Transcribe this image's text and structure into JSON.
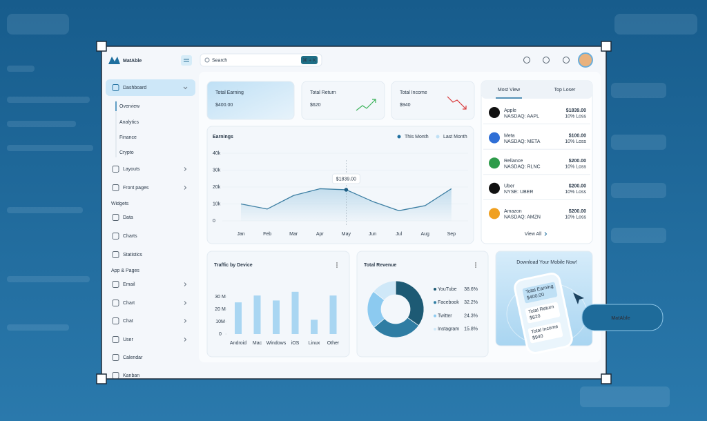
{
  "brand": "MatAble",
  "search": {
    "placeholder": "Search",
    "shortcut": "⌘ + K"
  },
  "sidebar": {
    "items": [
      "Dashboard",
      "Overview",
      "Analytics",
      "Finance",
      "Crypto",
      "Layouts",
      "Front pages",
      "Widgets",
      "Data",
      "Charts",
      "Statistics",
      "App & Pages",
      "Email",
      "Chart",
      "Chat",
      "User",
      "Calendar",
      "Kanban"
    ]
  },
  "stats": [
    {
      "label": "Total Earning",
      "value": "$400.00"
    },
    {
      "label": "Total Return",
      "value": "$620"
    },
    {
      "label": "Total Income",
      "value": "$940"
    }
  ],
  "earnings": {
    "type": "line",
    "title": "Earnings",
    "legend": [
      "This Month",
      "Last Month"
    ],
    "categories": [
      "Jan",
      "Feb",
      "Mar",
      "Apr",
      "May",
      "Jun",
      "Jul",
      "Aug",
      "Sep"
    ],
    "values": [
      10000,
      7000,
      15000,
      19000,
      18400,
      11500,
      6000,
      9000,
      19000
    ],
    "color": "#3d7fa3",
    "ylim": [
      0,
      40000
    ],
    "yticks": [
      0,
      {
        "value": 10000,
        "label": "10k"
      },
      {
        "value": 20000,
        "label": "20k"
      },
      {
        "value": 30000,
        "label": "30k"
      },
      {
        "value": 40000,
        "label": "40k"
      }
    ],
    "grid": true,
    "annotation": "$1839.00"
  },
  "most_view": {
    "tabs": [
      "Most View",
      "Top Loser"
    ],
    "rows": [
      {
        "name": "Apple",
        "ticker": "NASDAQ: AAPL",
        "price": "$1839.00",
        "change": "10% Loss"
      },
      {
        "name": "Meta",
        "ticker": "NASDAQ: META",
        "price": "$100.00",
        "change": "10% Loss"
      },
      {
        "name": "Reliance",
        "ticker": "NASDAQ: RLNC",
        "price": "$200.00",
        "change": "10% Loss"
      },
      {
        "name": "Uber",
        "ticker": "NYSE: UBER",
        "price": "$200.00",
        "change": "10% Loss"
      },
      {
        "name": "Amazon",
        "ticker": "NASDAQ: AMZN",
        "price": "$200.00",
        "change": "10% Loss"
      }
    ],
    "link": "View All"
  },
  "traffic": {
    "type": "bar",
    "title": "Traffic by Device",
    "categories": [
      "Android",
      "Mac",
      "Windows",
      "iOS",
      "Linux",
      "Other"
    ],
    "values": [
      25500000,
      31000000,
      27000000,
      34000000,
      11500000,
      31000000
    ],
    "color": "#a9d6f2",
    "ylim": [
      0,
      35000000
    ],
    "yticks": [
      0,
      {
        "value": 10000000,
        "label": "10M"
      },
      {
        "value": 20000000,
        "label": "20 M"
      },
      {
        "value": 30000000,
        "label": "30 M"
      }
    ]
  },
  "revenue": {
    "type": "pie",
    "title": "Total Revenue",
    "categories": [
      "YouTube",
      "Facebook",
      "Twitter",
      "Instagram"
    ],
    "values": [
      38.6,
      32.2,
      24.3,
      15.8
    ],
    "value_labels": [
      "38.6%",
      "32.2%",
      "24.3%",
      "15.8%"
    ],
    "colors": [
      "#1d5a74",
      "#2f7da3",
      "#8ccaf0",
      "#cfe8f8"
    ]
  },
  "promo": {
    "title": "Download Your Mobile Now!",
    "cards": [
      {
        "label": "Total Earning",
        "value": "$400.00"
      },
      {
        "label": "Total Return",
        "value": "$620"
      },
      {
        "label": "Total Income",
        "value": "$940"
      }
    ]
  },
  "badge": "MatAble"
}
